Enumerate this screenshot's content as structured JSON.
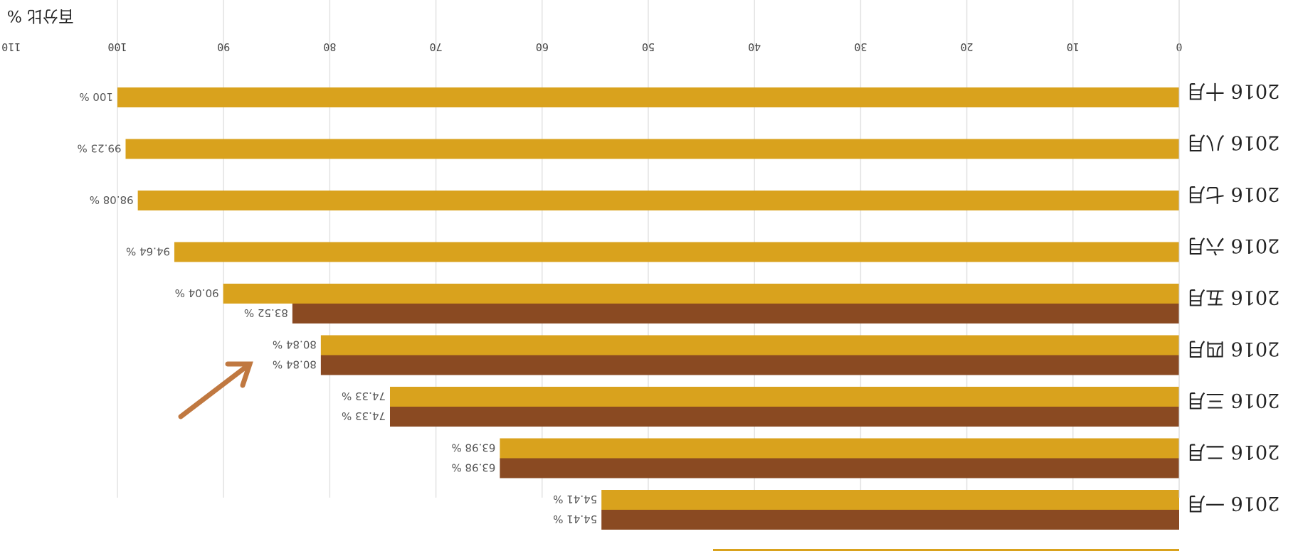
{
  "chart_data": {
    "type": "bar",
    "orientation": "horizontal",
    "axis_title": "百分比 %",
    "x_ticks": [
      0,
      10,
      20,
      30,
      40,
      50,
      60,
      70,
      80,
      90,
      100,
      110
    ],
    "xlim": [
      0,
      110
    ],
    "grid": true,
    "categories": [
      "2016 十月",
      "2016 八月",
      "2016 七月",
      "2016 六月",
      "2016 五月",
      "2016 四月",
      "2016 三月",
      "2016 二月",
      "2016 一月"
    ],
    "series": [
      {
        "color": "#d9a21d",
        "values": [
          100,
          99.23,
          98.08,
          94.64,
          90.04,
          80.84,
          74.33,
          63.98,
          54.41
        ]
      },
      {
        "color": "#8a4a22",
        "values": [
          null,
          null,
          null,
          null,
          83.52,
          80.84,
          74.33,
          63.98,
          54.41
        ]
      }
    ],
    "value_labels": {
      "series_0": [
        "100 %",
        "99.23 %",
        "98.08 %",
        "94.64 %",
        "90.04 %",
        "80.84 %",
        "74.33 %",
        "63.98 %",
        "54.41 %"
      ],
      "series_1": [
        null,
        null,
        null,
        null,
        "83.52 %",
        "80.84 %",
        "74.33 %",
        "63.98 %",
        "54.41 %"
      ]
    },
    "annotation": {
      "type": "arrow",
      "color": "#c07840",
      "target": "2016 五月 83.52 %"
    },
    "image_rotated_180": true
  }
}
